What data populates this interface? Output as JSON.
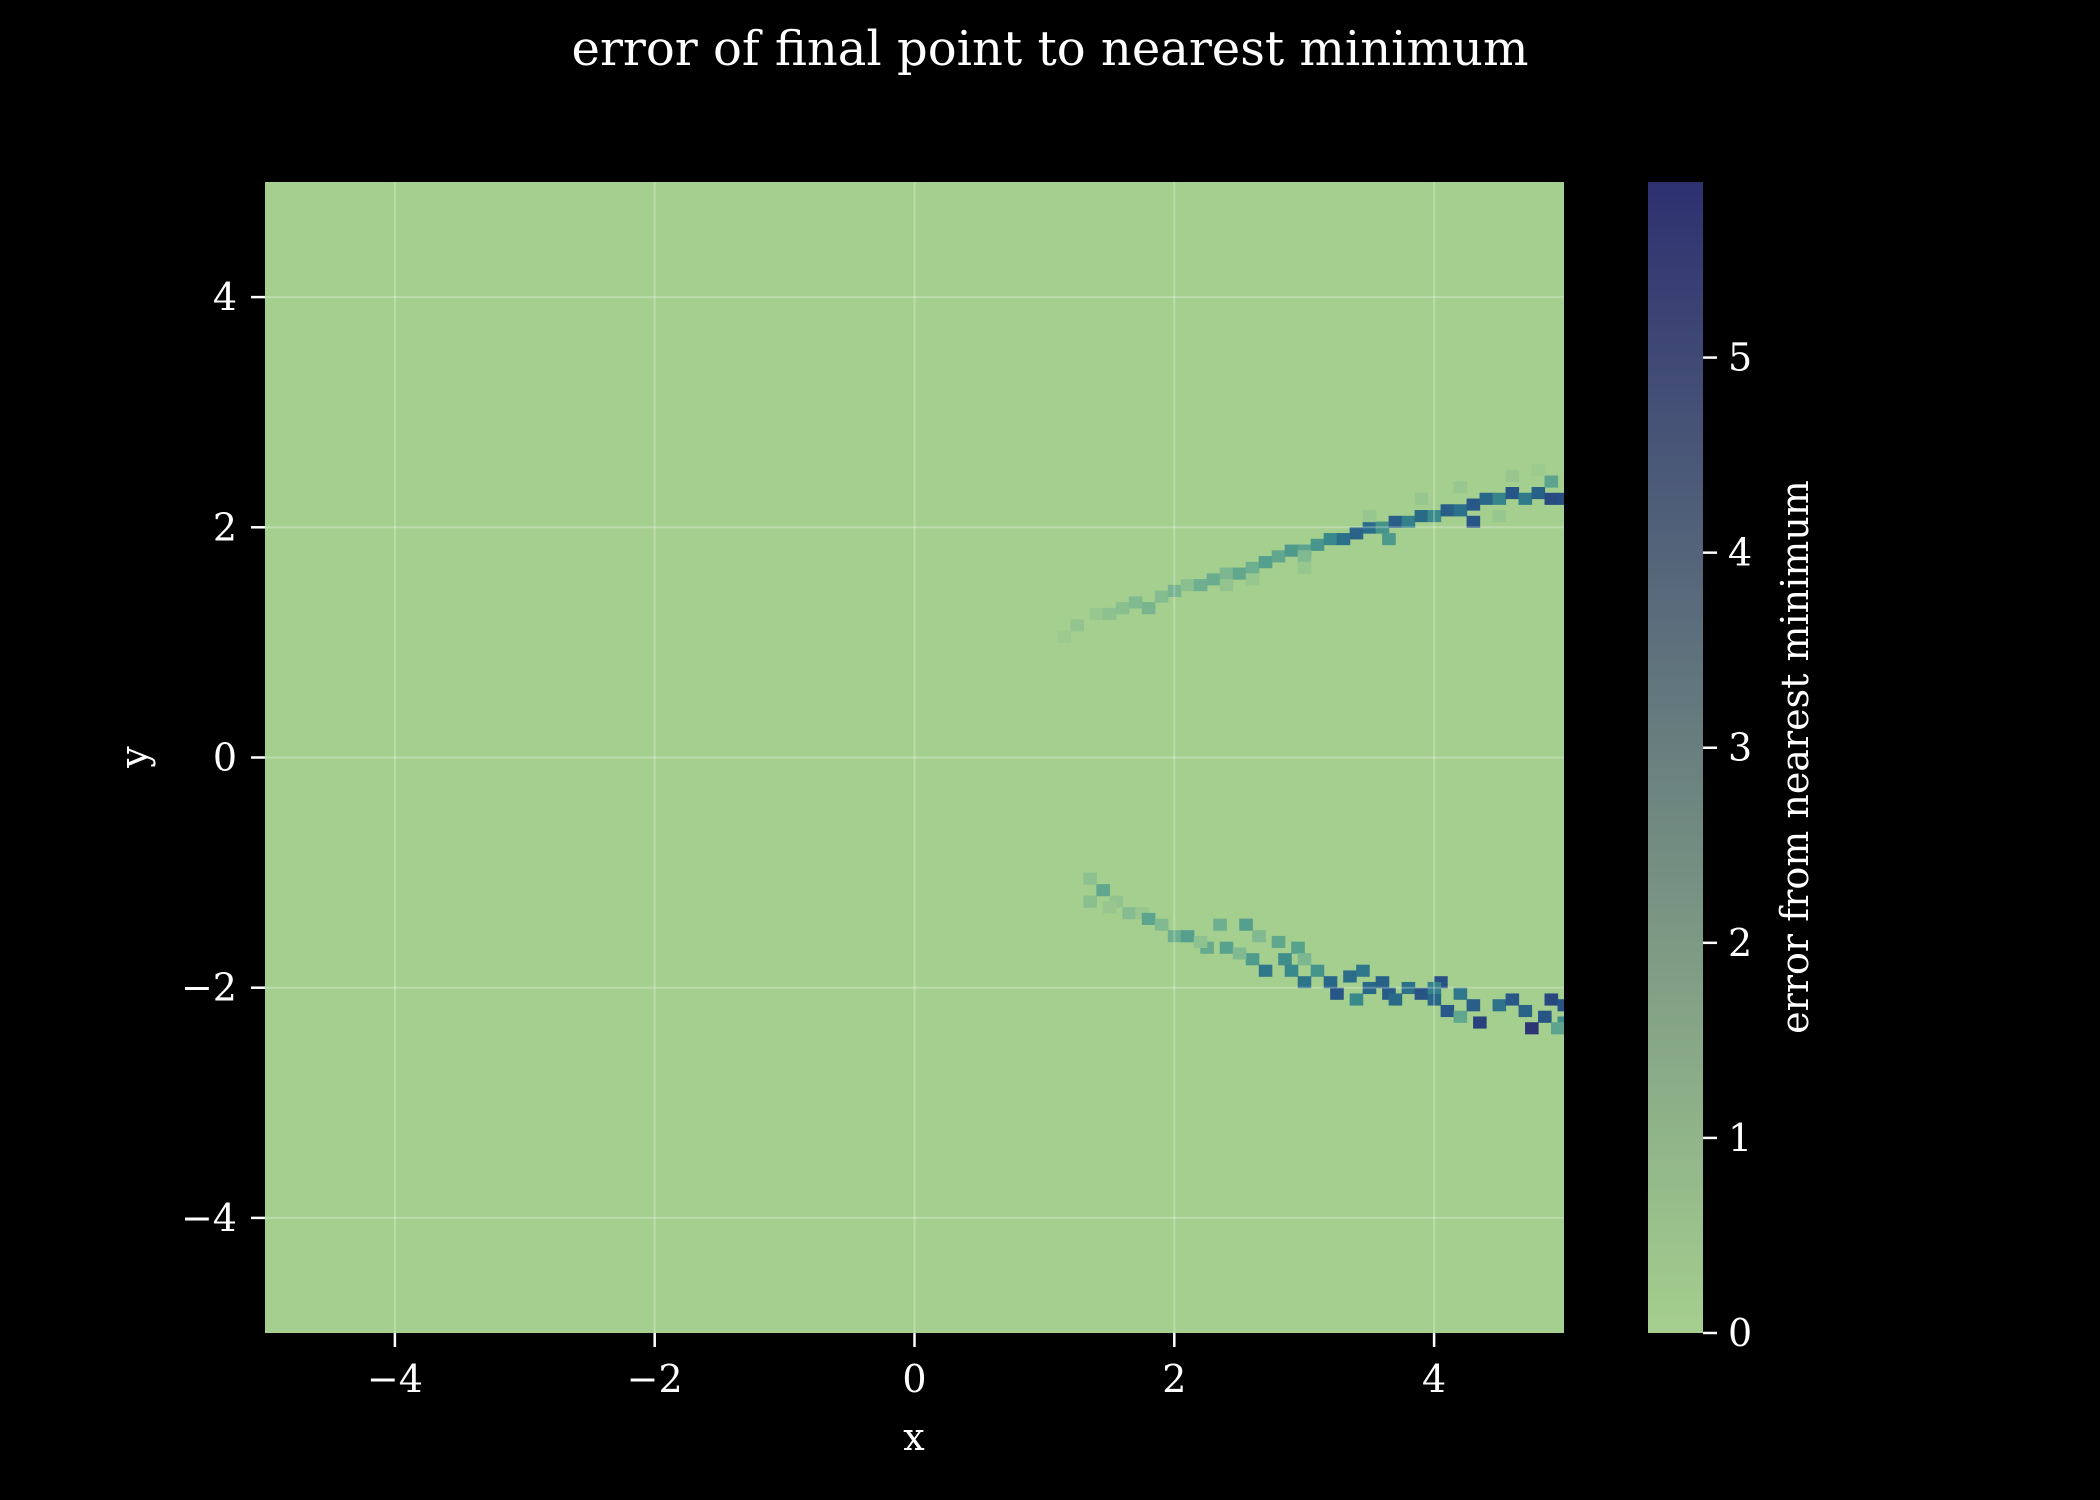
{
  "chart_data": {
    "type": "heatmap",
    "title": "error of final point to nearest minimum",
    "xlabel": "x",
    "ylabel": "y",
    "xlim": [
      -5,
      5
    ],
    "ylim": [
      -5,
      5
    ],
    "xticks": [
      -4,
      -2,
      0,
      2,
      4
    ],
    "yticks": [
      -4,
      -2,
      0,
      2,
      4
    ],
    "xtick_labels": [
      "−4",
      "−2",
      "0",
      "2",
      "4"
    ],
    "ytick_labels": [
      "−4",
      "−2",
      "0",
      "2",
      "4"
    ],
    "grid": true,
    "grid_resolution": 100,
    "background_value": 0.0,
    "colorbar": {
      "label": "error from nearest minimum",
      "range": [
        0,
        5.9
      ],
      "ticks": [
        0,
        1,
        2,
        3,
        4,
        5
      ],
      "tick_labels": [
        "0",
        "1",
        "2",
        "3",
        "4",
        "5"
      ],
      "colormap": [
        "#a5cf8e",
        "#7fb891",
        "#58a28d",
        "#3a8a8b",
        "#2a6e8a",
        "#275586",
        "#2a3e7c",
        "#2d3170"
      ]
    },
    "regions": [
      {
        "name": "upper band",
        "cells": [
          [
            1.15,
            1.05,
            0.2
          ],
          [
            1.25,
            1.15,
            0.4
          ],
          [
            1.4,
            1.25,
            0.3
          ],
          [
            1.5,
            1.25,
            0.5
          ],
          [
            1.6,
            1.3,
            0.6
          ],
          [
            1.7,
            1.35,
            0.8
          ],
          [
            1.8,
            1.3,
            1.0
          ],
          [
            1.9,
            1.4,
            0.7
          ],
          [
            2.0,
            1.45,
            1.0
          ],
          [
            2.1,
            1.5,
            0.6
          ],
          [
            2.2,
            1.5,
            1.2
          ],
          [
            2.3,
            1.55,
            1.3
          ],
          [
            2.4,
            1.6,
            0.9
          ],
          [
            2.5,
            1.6,
            1.5
          ],
          [
            2.6,
            1.65,
            1.2
          ],
          [
            2.7,
            1.7,
            1.8
          ],
          [
            2.8,
            1.75,
            1.5
          ],
          [
            2.9,
            1.8,
            2.0
          ],
          [
            3.0,
            1.8,
            1.6
          ],
          [
            3.1,
            1.85,
            2.1
          ],
          [
            3.2,
            1.9,
            2.6
          ],
          [
            3.3,
            1.9,
            3.3
          ],
          [
            3.4,
            1.95,
            3.7
          ],
          [
            3.5,
            2.0,
            3.4
          ],
          [
            3.6,
            2.0,
            2.2
          ],
          [
            3.7,
            2.05,
            3.9
          ],
          [
            3.8,
            2.05,
            2.8
          ],
          [
            3.9,
            2.1,
            3.5
          ],
          [
            4.0,
            2.1,
            2.5
          ],
          [
            4.1,
            2.15,
            3.9
          ],
          [
            4.2,
            2.15,
            3.3
          ],
          [
            4.3,
            2.2,
            4.1
          ],
          [
            4.4,
            2.25,
            3.6
          ],
          [
            4.5,
            2.25,
            2.7
          ],
          [
            4.6,
            2.3,
            4.2
          ],
          [
            4.7,
            2.25,
            3.0
          ],
          [
            4.8,
            2.3,
            3.8
          ],
          [
            4.9,
            2.25,
            4.6
          ],
          [
            5.0,
            2.25,
            4.5
          ],
          [
            4.9,
            2.4,
            1.6
          ],
          [
            4.3,
            2.05,
            4.2
          ],
          [
            3.65,
            1.9,
            2.0
          ],
          [
            3.0,
            1.75,
            0.8
          ],
          [
            2.4,
            1.5,
            0.4
          ],
          [
            4.6,
            2.45,
            0.3
          ],
          [
            4.2,
            2.35,
            0.3
          ],
          [
            3.9,
            2.25,
            0.3
          ],
          [
            3.5,
            2.1,
            0.3
          ],
          [
            3.0,
            1.65,
            0.3
          ],
          [
            2.6,
            1.55,
            0.3
          ],
          [
            4.8,
            2.5,
            0.2
          ],
          [
            4.5,
            2.1,
            0.3
          ]
        ]
      },
      {
        "name": "lower band",
        "cells": [
          [
            1.35,
            -1.05,
            0.5
          ],
          [
            1.35,
            -1.25,
            0.6
          ],
          [
            1.45,
            -1.15,
            1.5
          ],
          [
            1.55,
            -1.25,
            0.4
          ],
          [
            1.65,
            -1.35,
            0.7
          ],
          [
            1.75,
            -1.35,
            0.3
          ],
          [
            1.8,
            -1.4,
            1.6
          ],
          [
            1.9,
            -1.45,
            0.8
          ],
          [
            2.0,
            -1.55,
            1.2
          ],
          [
            2.1,
            -1.55,
            1.8
          ],
          [
            2.25,
            -1.65,
            1.4
          ],
          [
            2.35,
            -1.45,
            1.2
          ],
          [
            2.4,
            -1.65,
            1.7
          ],
          [
            2.55,
            -1.45,
            1.8
          ],
          [
            2.6,
            -1.75,
            1.9
          ],
          [
            2.65,
            -1.55,
            0.8
          ],
          [
            2.7,
            -1.85,
            3.1
          ],
          [
            2.8,
            -1.6,
            1.5
          ],
          [
            2.85,
            -1.75,
            2.4
          ],
          [
            2.9,
            -1.85,
            2.6
          ],
          [
            2.95,
            -1.65,
            1.7
          ],
          [
            3.0,
            -1.95,
            3.2
          ],
          [
            3.1,
            -1.85,
            2.2
          ],
          [
            3.2,
            -1.95,
            3.6
          ],
          [
            3.25,
            -2.05,
            4.2
          ],
          [
            3.35,
            -1.9,
            3.4
          ],
          [
            3.45,
            -1.85,
            3.1
          ],
          [
            3.5,
            -2.0,
            3.6
          ],
          [
            3.6,
            -1.95,
            3.8
          ],
          [
            3.65,
            -2.05,
            4.0
          ],
          [
            3.7,
            -2.1,
            3.5
          ],
          [
            3.8,
            -2.0,
            3.3
          ],
          [
            3.9,
            -2.05,
            4.3
          ],
          [
            4.0,
            -2.1,
            3.6
          ],
          [
            4.05,
            -1.95,
            4.4
          ],
          [
            4.1,
            -2.2,
            4.1
          ],
          [
            4.2,
            -2.05,
            3.1
          ],
          [
            4.3,
            -2.15,
            3.9
          ],
          [
            4.35,
            -2.3,
            4.9
          ],
          [
            4.5,
            -2.15,
            3.2
          ],
          [
            4.6,
            -2.1,
            4.1
          ],
          [
            4.7,
            -2.2,
            3.7
          ],
          [
            4.75,
            -2.35,
            5.6
          ],
          [
            4.85,
            -2.25,
            4.2
          ],
          [
            4.9,
            -2.1,
            4.7
          ],
          [
            5.0,
            -2.15,
            4.3
          ],
          [
            5.0,
            -2.3,
            2.4
          ],
          [
            4.95,
            -2.35,
            1.6
          ],
          [
            4.0,
            -2.0,
            2.8
          ],
          [
            3.4,
            -2.1,
            2.6
          ],
          [
            2.5,
            -1.7,
            0.8
          ],
          [
            2.2,
            -1.6,
            0.5
          ],
          [
            1.5,
            -1.3,
            0.3
          ],
          [
            4.2,
            -2.25,
            1.5
          ],
          [
            3.0,
            -1.75,
            0.9
          ]
        ]
      }
    ]
  }
}
